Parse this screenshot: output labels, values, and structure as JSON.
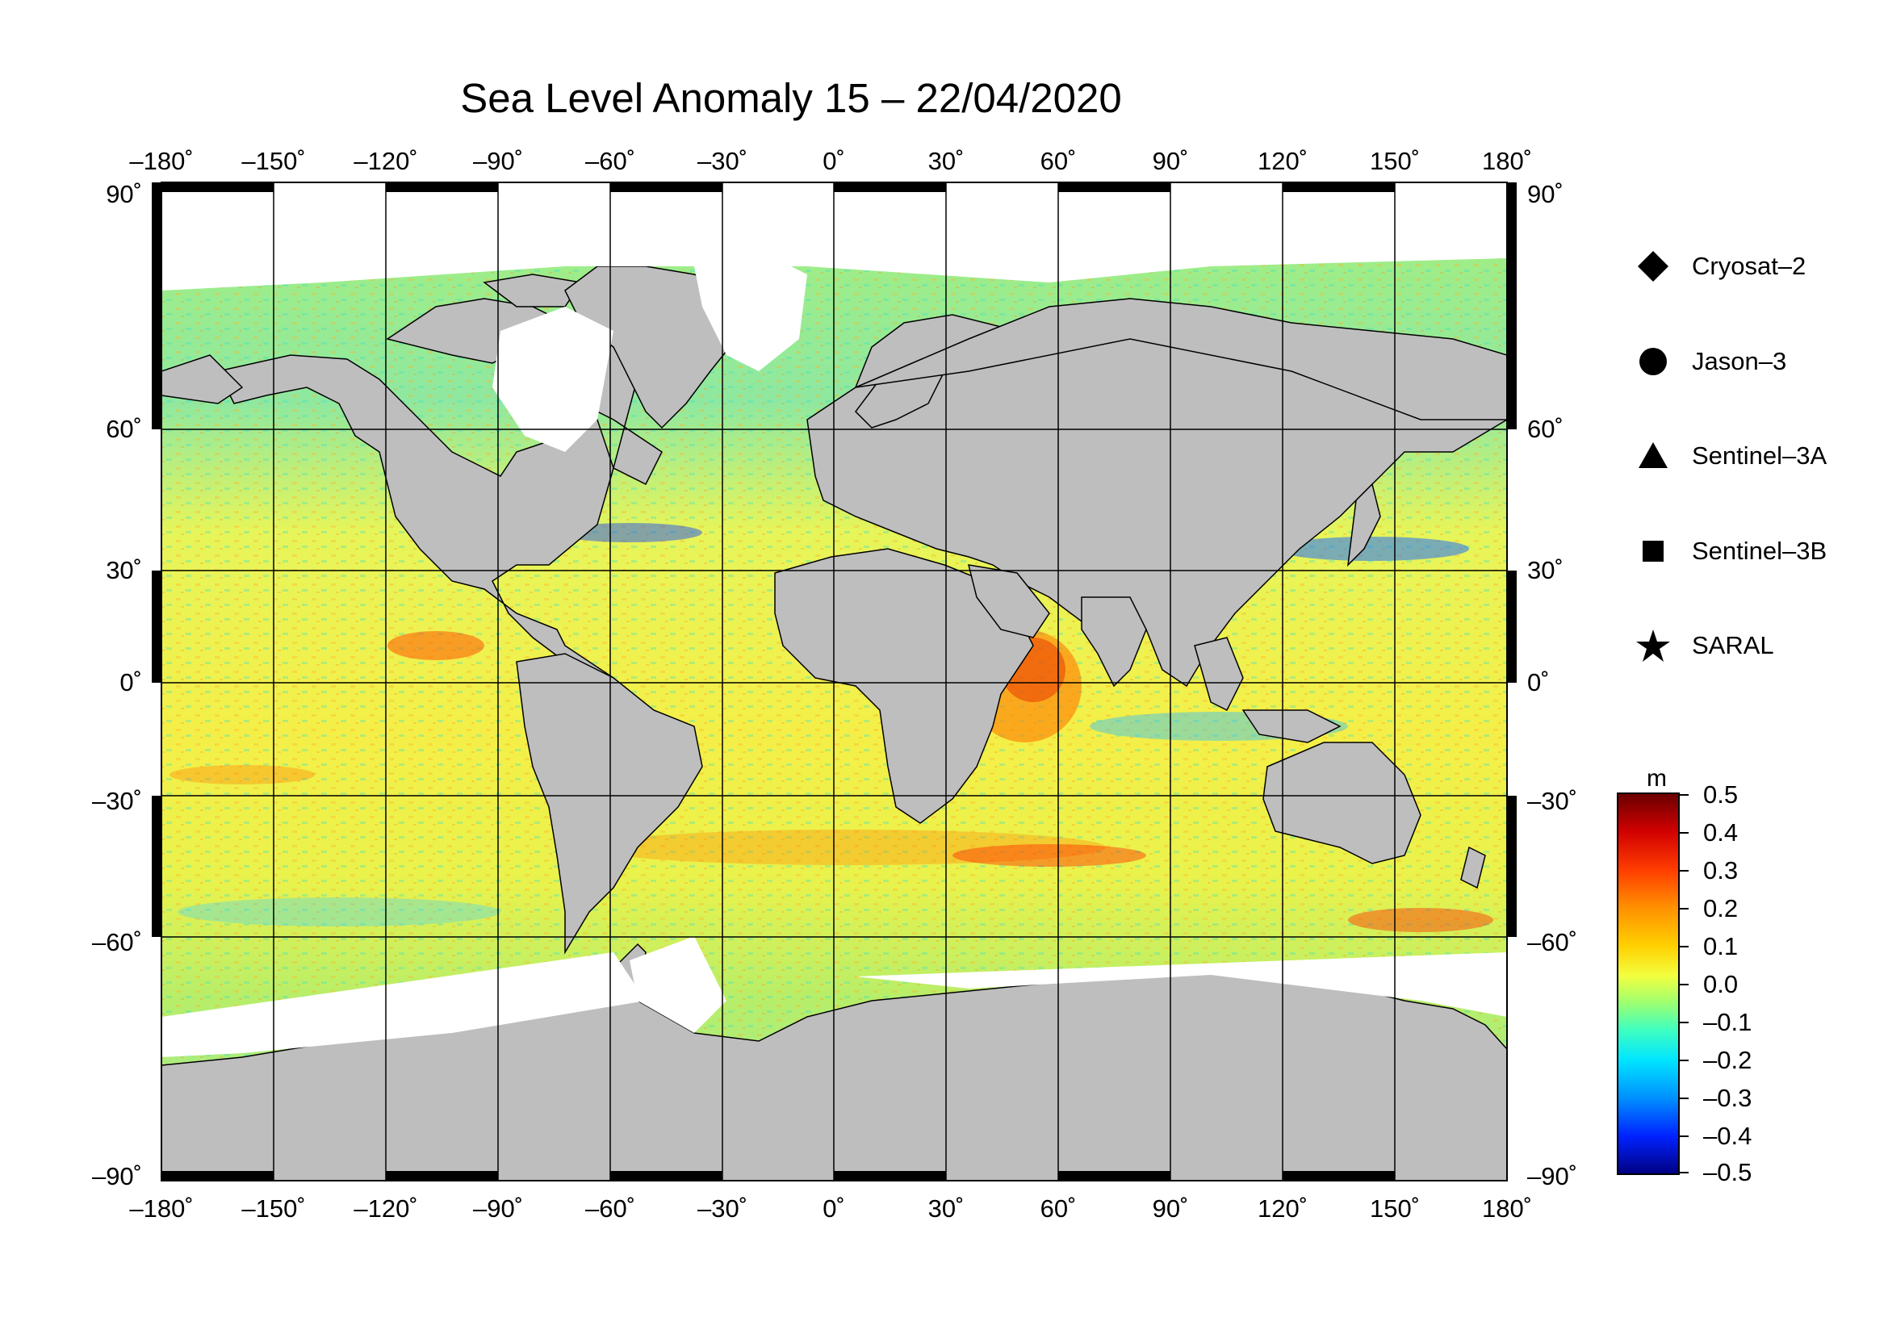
{
  "title": "Sea Level Anomaly 15 – 22/04/2020",
  "lon_ticks": [
    "–180˚",
    "–150˚",
    "–120˚",
    "–90˚",
    "–60˚",
    "–30˚",
    "0˚",
    "30˚",
    "60˚",
    "90˚",
    "120˚",
    "150˚",
    "180˚"
  ],
  "lat_ticks_left": [
    "90˚",
    "60˚",
    "30˚",
    "0˚",
    "–30˚",
    "–60˚",
    "–90˚"
  ],
  "lat_ticks_right": [
    "90˚",
    "60˚",
    "30˚",
    "0˚",
    "–30˚",
    "–60˚",
    "–90˚"
  ],
  "legend": [
    {
      "label": "Cryosat–2",
      "icon": "diamond-icon"
    },
    {
      "label": "Jason–3",
      "icon": "circle-icon"
    },
    {
      "label": "Sentinel–3A",
      "icon": "triangle-icon"
    },
    {
      "label": "Sentinel–3B",
      "icon": "square-icon"
    },
    {
      "label": "SARAL",
      "icon": "star-icon"
    }
  ],
  "colorbar": {
    "unit": "m",
    "ticks": [
      "0.5",
      "0.4",
      "0.3",
      "0.2",
      "0.1",
      "0.0",
      "–0.1",
      "–0.2",
      "–0.3",
      "–0.4",
      "–0.5"
    ],
    "colors": [
      "#7a0000",
      "#d40000",
      "#ff4400",
      "#ff9900",
      "#ffd400",
      "#f7ff33",
      "#a8ff66",
      "#55ffb0",
      "#00e6ff",
      "#00a0ff",
      "#0044ff",
      "#0000b0"
    ]
  },
  "colors": {
    "land": "#bebebe",
    "ice": "#ffffff",
    "ocean_base": "#b6f26a",
    "grid": "#000000"
  }
}
